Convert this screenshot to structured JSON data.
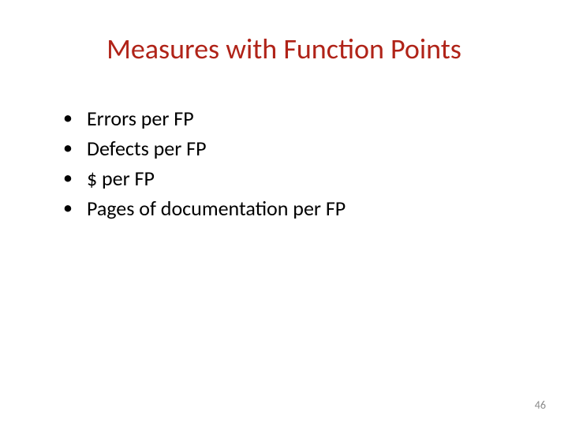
{
  "slide": {
    "title": "Measures with Function Points",
    "title_color": "#b02318",
    "bullets": [
      "Errors per FP",
      "Defects per FP",
      "$ per FP",
      "Pages of documentation per FP"
    ],
    "bullet_marker": "•",
    "text_color": "#000000",
    "page_number": "46",
    "page_number_color": "#8b8b8b",
    "background_color": "#ffffff",
    "title_fontsize": 36,
    "bullet_fontsize": 26
  }
}
